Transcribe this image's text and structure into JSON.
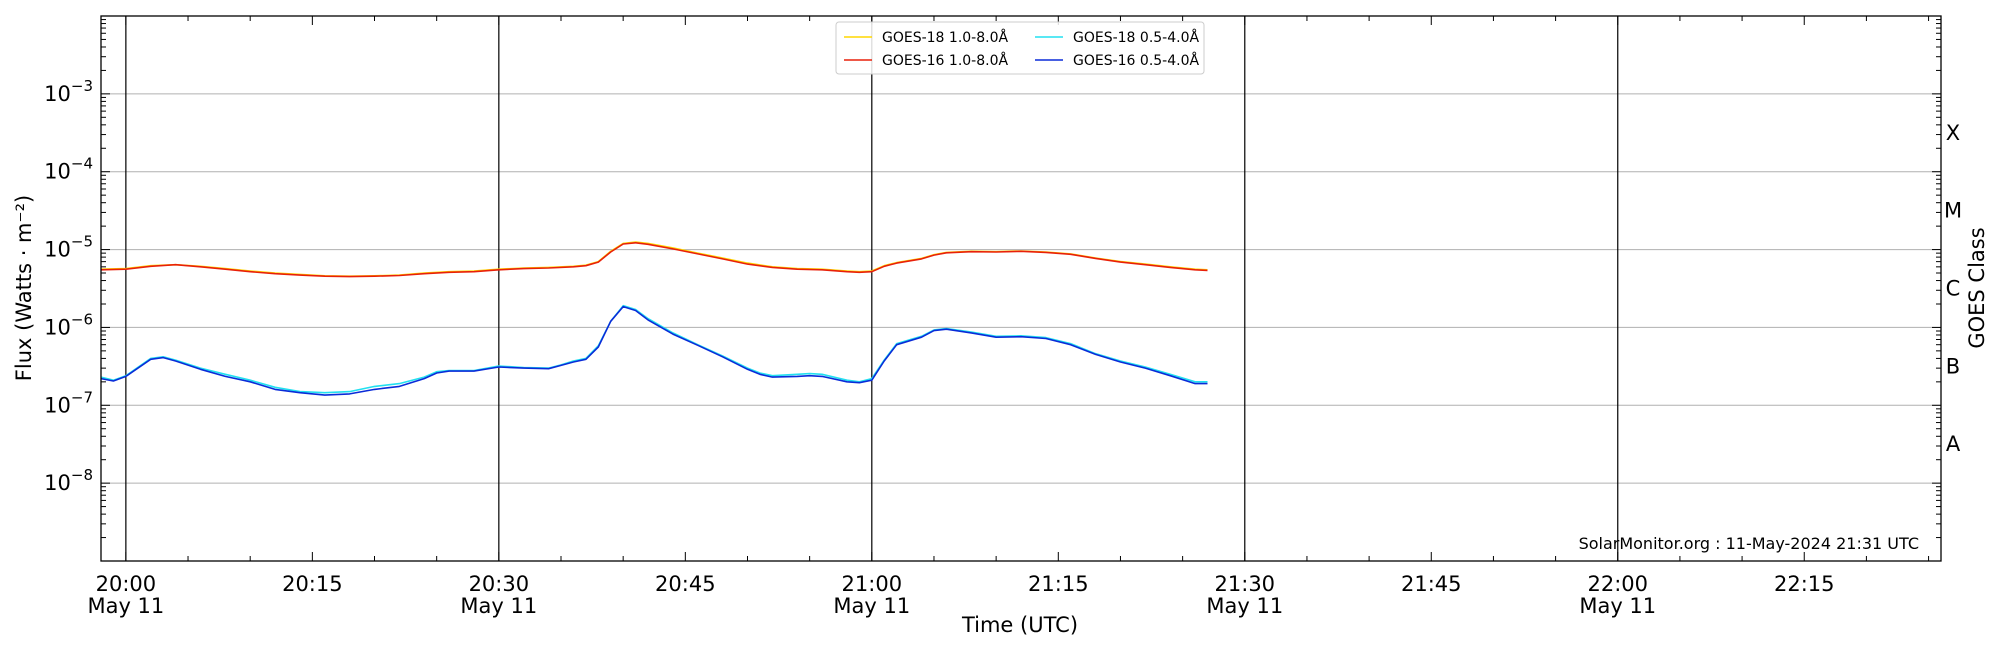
{
  "chart_data": {
    "type": "line",
    "xlabel": "Time (UTC)",
    "ylabel": "Flux (Watts · m⁻²)",
    "right_ylabel": "GOES Class",
    "credit": "SolarMonitor.org : 11-May-2024 21:31 UTC",
    "xlim": [
      "19:58",
      "22:26"
    ],
    "yscale": "log",
    "ylim": [
      1e-09,
      0.01
    ],
    "grid": "horizontal",
    "legend_position": "top-center",
    "x_ticks": [
      {
        "label": "20:00",
        "sub": "May 11"
      },
      {
        "label": "20:15",
        "sub": ""
      },
      {
        "label": "20:30",
        "sub": "May 11"
      },
      {
        "label": "20:45",
        "sub": ""
      },
      {
        "label": "21:00",
        "sub": "May 11"
      },
      {
        "label": "21:15",
        "sub": ""
      },
      {
        "label": "21:30",
        "sub": "May 11"
      },
      {
        "label": "21:45",
        "sub": ""
      },
      {
        "label": "22:00",
        "sub": "May 11"
      },
      {
        "label": "22:15",
        "sub": ""
      }
    ],
    "y_ticks": [
      {
        "exp": -8,
        "label": "10",
        "sup": "−8"
      },
      {
        "exp": -7,
        "label": "10",
        "sup": "−7"
      },
      {
        "exp": -6,
        "label": "10",
        "sup": "−6"
      },
      {
        "exp": -5,
        "label": "10",
        "sup": "−5"
      },
      {
        "exp": -4,
        "label": "10",
        "sup": "−4"
      },
      {
        "exp": -3,
        "label": "10",
        "sup": "−3"
      }
    ],
    "goes_classes": [
      {
        "label": "A",
        "exp": -7.5
      },
      {
        "label": "B",
        "exp": -6.5
      },
      {
        "label": "C",
        "exp": -5.5
      },
      {
        "label": "M",
        "exp": -4.5
      },
      {
        "label": "X",
        "exp": -3.5
      }
    ],
    "vlines": [
      "20:00",
      "20:30",
      "21:00",
      "21:30",
      "22:00"
    ],
    "series": [
      {
        "name": "GOES-18 1.0-8.0Å",
        "color": "#FFD700",
        "x": [
          "19:58",
          "20:00",
          "20:02",
          "20:04",
          "20:06",
          "20:08",
          "20:10",
          "20:12",
          "20:14",
          "20:16",
          "20:18",
          "20:20",
          "20:22",
          "20:24",
          "20:26",
          "20:28",
          "20:30",
          "20:32",
          "20:34",
          "20:36",
          "20:37",
          "20:38",
          "20:39",
          "20:40",
          "20:41",
          "20:42",
          "20:44",
          "20:46",
          "20:48",
          "20:50",
          "20:52",
          "20:54",
          "20:56",
          "20:58",
          "20:59",
          "21:00",
          "21:01",
          "21:02",
          "21:04",
          "21:05",
          "21:06",
          "21:08",
          "21:10",
          "21:12",
          "21:14",
          "21:16",
          "21:18",
          "21:20",
          "21:22",
          "21:24",
          "21:26",
          "21:27"
        ],
        "values": [
          5.6e-06,
          5.7e-06,
          6.2e-06,
          6.4e-06,
          6.1e-06,
          5.7e-06,
          5.3e-06,
          5e-06,
          4.8e-06,
          4.6e-06,
          4.55e-06,
          4.6e-06,
          4.7e-06,
          5e-06,
          5.2e-06,
          5.3e-06,
          5.6e-06,
          5.8e-06,
          5.9e-06,
          6.1e-06,
          6.3e-06,
          7e-06,
          9.5e-06,
          1.2e-05,
          1.25e-05,
          1.2e-05,
          1.05e-05,
          9e-06,
          7.8e-06,
          6.7e-06,
          6e-06,
          5.7e-06,
          5.6e-06,
          5.3e-06,
          5.2e-06,
          5.3e-06,
          6.2e-06,
          6.8e-06,
          7.7e-06,
          8.6e-06,
          9.2e-06,
          9.5e-06,
          9.4e-06,
          9.6e-06,
          9.3e-06,
          8.8e-06,
          7.8e-06,
          7e-06,
          6.5e-06,
          6e-06,
          5.6e-06,
          5.5e-06
        ]
      },
      {
        "name": "GOES-16 1.0-8.0Å",
        "color": "#E8200A",
        "x": [
          "19:58",
          "20:00",
          "20:02",
          "20:04",
          "20:06",
          "20:08",
          "20:10",
          "20:12",
          "20:14",
          "20:16",
          "20:18",
          "20:20",
          "20:22",
          "20:24",
          "20:26",
          "20:28",
          "20:30",
          "20:32",
          "20:34",
          "20:36",
          "20:37",
          "20:38",
          "20:39",
          "20:40",
          "20:41",
          "20:42",
          "20:44",
          "20:46",
          "20:48",
          "20:50",
          "20:52",
          "20:54",
          "20:56",
          "20:58",
          "20:59",
          "21:00",
          "21:01",
          "21:02",
          "21:04",
          "21:05",
          "21:06",
          "21:08",
          "21:10",
          "21:12",
          "21:14",
          "21:16",
          "21:18",
          "21:20",
          "21:22",
          "21:24",
          "21:26",
          "21:27"
        ],
        "values": [
          5.5e-06,
          5.6e-06,
          6.1e-06,
          6.4e-06,
          6e-06,
          5.6e-06,
          5.2e-06,
          4.9e-06,
          4.7e-06,
          4.55e-06,
          4.5e-06,
          4.55e-06,
          4.65e-06,
          4.9e-06,
          5.1e-06,
          5.2e-06,
          5.5e-06,
          5.7e-06,
          5.8e-06,
          6e-06,
          6.2e-06,
          6.9e-06,
          9.3e-06,
          1.18e-05,
          1.22e-05,
          1.17e-05,
          1.02e-05,
          8.8e-06,
          7.6e-06,
          6.5e-06,
          5.9e-06,
          5.6e-06,
          5.5e-06,
          5.2e-06,
          5.1e-06,
          5.2e-06,
          6.1e-06,
          6.7e-06,
          7.6e-06,
          8.5e-06,
          9.1e-06,
          9.4e-06,
          9.3e-06,
          9.5e-06,
          9.2e-06,
          8.7e-06,
          7.7e-06,
          6.9e-06,
          6.4e-06,
          5.9e-06,
          5.5e-06,
          5.4e-06
        ]
      },
      {
        "name": "GOES-18 0.5-4.0Å",
        "color": "#22E0F0",
        "x": [
          "19:58",
          "19:59",
          "20:00",
          "20:02",
          "20:03",
          "20:04",
          "20:06",
          "20:08",
          "20:10",
          "20:12",
          "20:14",
          "20:16",
          "20:18",
          "20:20",
          "20:22",
          "20:24",
          "20:25",
          "20:26",
          "20:28",
          "20:30",
          "20:32",
          "20:34",
          "20:35",
          "20:36",
          "20:37",
          "20:38",
          "20:39",
          "20:40",
          "20:41",
          "20:42",
          "20:44",
          "20:46",
          "20:48",
          "20:50",
          "20:51",
          "20:52",
          "20:54",
          "20:55",
          "20:56",
          "20:58",
          "20:59",
          "21:00",
          "21:01",
          "21:02",
          "21:04",
          "21:05",
          "21:06",
          "21:08",
          "21:10",
          "21:12",
          "21:14",
          "21:16",
          "21:18",
          "21:20",
          "21:22",
          "21:24",
          "21:26",
          "21:27"
        ],
        "values": [
          2.3e-07,
          2.1e-07,
          2.4e-07,
          4e-07,
          4.2e-07,
          3.8e-07,
          3e-07,
          2.5e-07,
          2.1e-07,
          1.7e-07,
          1.5e-07,
          1.45e-07,
          1.5e-07,
          1.75e-07,
          1.9e-07,
          2.3e-07,
          2.7e-07,
          2.8e-07,
          2.8e-07,
          3.2e-07,
          3.05e-07,
          3e-07,
          3.3e-07,
          3.7e-07,
          4e-07,
          5.8e-07,
          1.2e-06,
          1.9e-06,
          1.7e-06,
          1.3e-06,
          8.5e-07,
          6e-07,
          4.3e-07,
          3e-07,
          2.6e-07,
          2.4e-07,
          2.5e-07,
          2.55e-07,
          2.5e-07,
          2.1e-07,
          2e-07,
          2.2e-07,
          3.8e-07,
          6.2e-07,
          7.7e-07,
          9.3e-07,
          9.7e-07,
          8.7e-07,
          7.7e-07,
          7.8e-07,
          7.4e-07,
          6.2e-07,
          4.6e-07,
          3.7e-07,
          3.1e-07,
          2.5e-07,
          2e-07,
          2e-07
        ]
      },
      {
        "name": "GOES-16 0.5-4.0Å",
        "color": "#0A2BD8",
        "x": [
          "19:58",
          "19:59",
          "20:00",
          "20:02",
          "20:03",
          "20:04",
          "20:06",
          "20:08",
          "20:10",
          "20:12",
          "20:14",
          "20:16",
          "20:18",
          "20:20",
          "20:22",
          "20:24",
          "20:25",
          "20:26",
          "20:28",
          "20:30",
          "20:32",
          "20:34",
          "20:35",
          "20:36",
          "20:37",
          "20:38",
          "20:39",
          "20:40",
          "20:41",
          "20:42",
          "20:44",
          "20:46",
          "20:48",
          "20:50",
          "20:51",
          "20:52",
          "20:54",
          "20:55",
          "20:56",
          "20:58",
          "20:59",
          "21:00",
          "21:01",
          "21:02",
          "21:04",
          "21:05",
          "21:06",
          "21:08",
          "21:10",
          "21:12",
          "21:14",
          "21:16",
          "21:18",
          "21:20",
          "21:22",
          "21:24",
          "21:26",
          "21:27"
        ],
        "values": [
          2.2e-07,
          2.05e-07,
          2.35e-07,
          3.9e-07,
          4.1e-07,
          3.7e-07,
          2.9e-07,
          2.35e-07,
          2e-07,
          1.6e-07,
          1.45e-07,
          1.35e-07,
          1.4e-07,
          1.6e-07,
          1.75e-07,
          2.2e-07,
          2.6e-07,
          2.75e-07,
          2.75e-07,
          3.1e-07,
          3e-07,
          2.95e-07,
          3.25e-07,
          3.6e-07,
          3.9e-07,
          5.6e-07,
          1.2e-06,
          1.85e-06,
          1.65e-06,
          1.25e-06,
          8.2e-07,
          5.9e-07,
          4.2e-07,
          2.9e-07,
          2.5e-07,
          2.3e-07,
          2.35e-07,
          2.4e-07,
          2.35e-07,
          2e-07,
          1.95e-07,
          2.1e-07,
          3.7e-07,
          6e-07,
          7.5e-07,
          9.1e-07,
          9.5e-07,
          8.5e-07,
          7.5e-07,
          7.6e-07,
          7.2e-07,
          6e-07,
          4.5e-07,
          3.6e-07,
          3e-07,
          2.4e-07,
          1.9e-07,
          1.9e-07
        ]
      }
    ]
  }
}
